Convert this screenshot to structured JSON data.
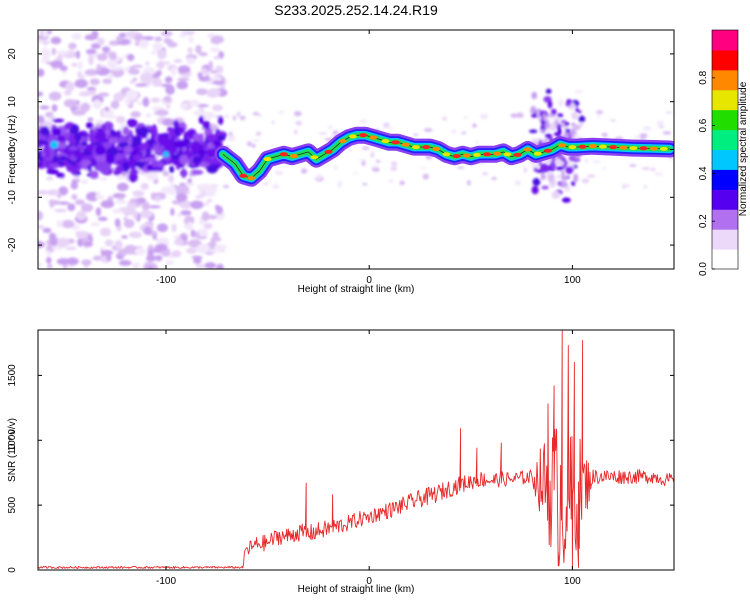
{
  "title": "S233.2025.252.14.24.R19",
  "colors": {
    "snr_line": "#e8282a",
    "frame": "#000000"
  },
  "chart_data": [
    {
      "type": "heatmap",
      "name": "spectrogram",
      "xlabel": "Height of straight line (km)",
      "ylabel": "Frequency (Hz)",
      "xlim": [
        -163,
        150
      ],
      "ylim": [
        -25,
        25
      ],
      "xticks": [
        -100,
        0,
        100
      ],
      "yticks": [
        -20,
        -10,
        0,
        10,
        20
      ],
      "grid": false,
      "colorbar": {
        "label": "Normalized spectral amplitude",
        "range": [
          0,
          1
        ],
        "ticks": [
          "0.0",
          "0.2",
          "0.4",
          "0.6",
          "0.8"
        ],
        "colormap": [
          "#ffffff",
          "#ecd8f8",
          "#b070f0",
          "#5500ee",
          "#0000ff",
          "#00c8ff",
          "#00ee80",
          "#22dd00",
          "#e6e600",
          "#ff8800",
          "#ff0000",
          "#ff0080"
        ]
      },
      "noise_region_x": [
        -163,
        -72
      ],
      "signal_track": {
        "x": [
          -72,
          -66,
          -62,
          -58,
          -54,
          -50,
          -46,
          -42,
          -38,
          -34,
          -30,
          -26,
          -22,
          -18,
          -14,
          -10,
          -6,
          -2,
          2,
          6,
          10,
          14,
          18,
          22,
          26,
          30,
          34,
          38,
          42,
          46,
          50,
          54,
          58,
          62,
          66,
          70,
          74,
          78,
          82,
          86,
          90,
          94,
          98,
          102,
          110,
          120,
          130,
          140,
          148
        ],
        "y": [
          -1,
          -3,
          -5.5,
          -6,
          -4.5,
          -2,
          -1.5,
          -1,
          -1.5,
          -1,
          -0.5,
          -2,
          -1,
          0,
          1.5,
          2.5,
          3,
          3,
          2.5,
          2,
          1.5,
          1.5,
          1,
          0.5,
          0.5,
          0.5,
          0,
          -1,
          -1.5,
          -1,
          -1.5,
          -1,
          -1,
          -1,
          -0.5,
          -1.5,
          -1,
          0,
          -1,
          -0.5,
          0,
          1,
          0.5,
          0.5,
          0.7,
          0.5,
          0.3,
          0.2,
          0.1
        ]
      },
      "hotspots_x": [
        -62,
        -58,
        -50,
        -42,
        -37,
        -27,
        -20,
        -13,
        -8,
        -3,
        2,
        8,
        13,
        18,
        23,
        28,
        33,
        38,
        43,
        48,
        53,
        58,
        63,
        68,
        73,
        78,
        83,
        88,
        95,
        100,
        105,
        110,
        115,
        120,
        125,
        130,
        135,
        140,
        145
      ]
    },
    {
      "type": "line",
      "name": "snr",
      "xlabel": "Height of straight line (km)",
      "ylabel": "SNR (10 * v/v)",
      "xlim": [
        -163,
        150
      ],
      "ylim": [
        0,
        1850
      ],
      "xticks": [
        -100,
        0,
        100
      ],
      "yticks": [
        0,
        500,
        1000,
        1500
      ],
      "grid": false,
      "envelope": {
        "x": [
          -163,
          -62,
          -61,
          -55,
          -50,
          -45,
          -40,
          -35,
          -30,
          -25,
          -20,
          -15,
          -10,
          -5,
          0,
          5,
          10,
          15,
          20,
          25,
          30,
          35,
          40,
          45,
          50,
          55,
          60,
          65,
          70,
          75,
          80,
          85,
          90,
          95,
          100,
          105,
          110,
          115,
          120,
          125,
          130,
          135,
          140,
          145,
          150
        ],
        "y": [
          20,
          20,
          150,
          200,
          210,
          260,
          260,
          290,
          280,
          300,
          320,
          340,
          360,
          390,
          410,
          440,
          460,
          490,
          520,
          550,
          570,
          600,
          630,
          660,
          680,
          700,
          690,
          700,
          700,
          710,
          720,
          680,
          620,
          560,
          560,
          620,
          720,
          720,
          720,
          720,
          720,
          720,
          720,
          700,
          690
        ]
      },
      "noise_amplitude": {
        "x": [
          -163,
          -62,
          -61,
          -30,
          0,
          30,
          60,
          80,
          84,
          90,
          96,
          104,
          110,
          150
        ],
        "y": [
          8,
          8,
          60,
          70,
          60,
          70,
          60,
          55,
          250,
          520,
          620,
          420,
          60,
          50
        ]
      },
      "spikes": [
        {
          "x": -31,
          "y": 670
        },
        {
          "x": -18,
          "y": 580
        },
        {
          "x": 45,
          "y": 1090
        },
        {
          "x": 53,
          "y": 940
        },
        {
          "x": 65,
          "y": 980
        },
        {
          "x": 88,
          "y": 1280
        },
        {
          "x": 91,
          "y": 1420
        },
        {
          "x": 95,
          "y": 1850
        },
        {
          "x": 98,
          "y": 1730
        },
        {
          "x": 101,
          "y": 1600
        },
        {
          "x": 105,
          "y": 1770
        },
        {
          "x": 93,
          "y": 30
        },
        {
          "x": 100,
          "y": 0
        },
        {
          "x": 103,
          "y": 20
        }
      ]
    }
  ]
}
